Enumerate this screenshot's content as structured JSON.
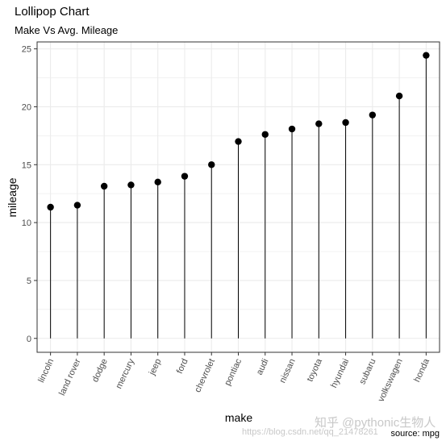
{
  "chart_data": {
    "type": "lollipop",
    "title": "Lollipop Chart",
    "subtitle": "Make Vs Avg. Mileage",
    "caption": "source: mpg",
    "xlabel": "make",
    "ylabel": "mileage",
    "categories": [
      "lincoln",
      "land rover",
      "dodge",
      "mercury",
      "jeep",
      "ford",
      "chevrolet",
      "pontiac",
      "audi",
      "nissan",
      "toyota",
      "hyundai",
      "subaru",
      "volkswagen",
      "honda"
    ],
    "values": [
      11.33,
      11.5,
      13.14,
      13.25,
      13.5,
      14.0,
      15.0,
      17.0,
      17.61,
      18.08,
      18.53,
      18.64,
      19.29,
      20.93,
      24.44
    ],
    "ylim": [
      -1.2,
      25.6
    ],
    "yticks": [
      0,
      5,
      10,
      15,
      20,
      25
    ],
    "grid": true,
    "colors": {
      "marker": "#000000",
      "panel_border": "#333333",
      "grid": "#ebebeb"
    }
  },
  "watermark": {
    "main": "知乎 @pythonic生物人",
    "url": "https://blog.csdn.net/qq_21478261"
  }
}
